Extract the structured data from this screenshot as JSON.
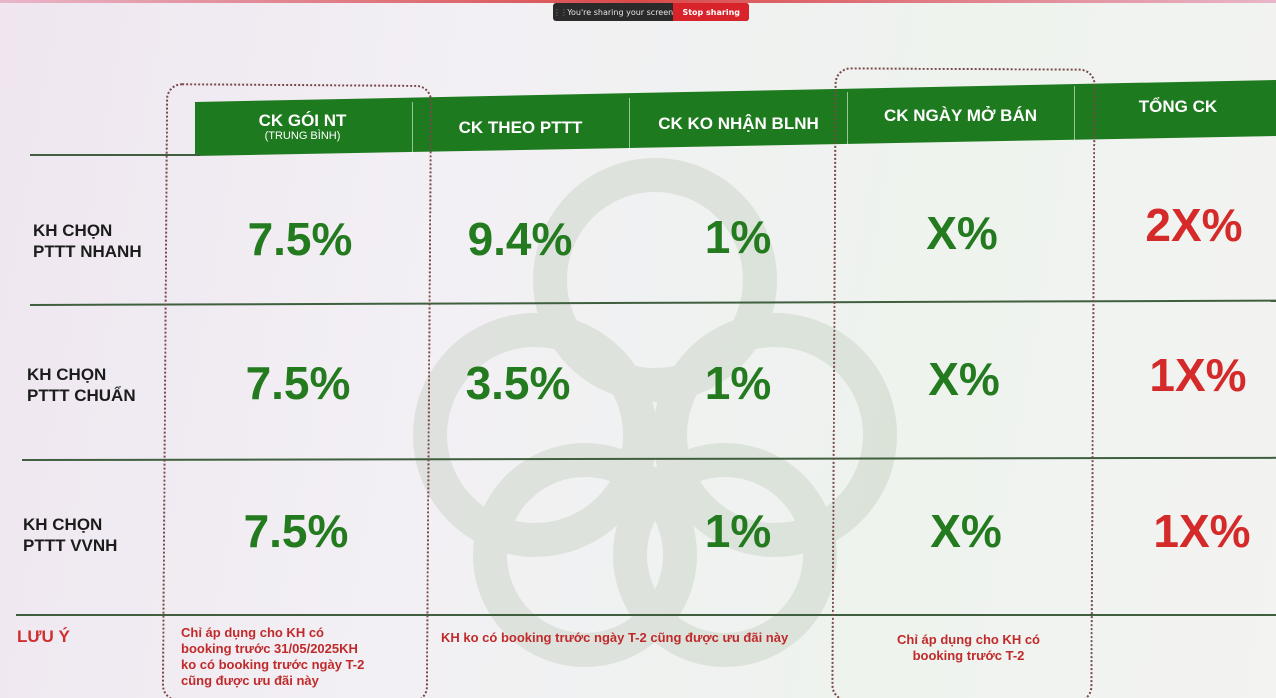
{
  "share_bar": {
    "message": "You're sharing your screen",
    "stop_label": "Stop sharing"
  },
  "headers": [
    {
      "label": "CK GÓI NT",
      "sub": "(TRUNG BÌNH)"
    },
    {
      "label": "CK THEO PTTT"
    },
    {
      "label": "CK KO NHẬN BLNH"
    },
    {
      "label": "CK NGÀY MỞ BÁN"
    },
    {
      "label": "TỔNG CK"
    }
  ],
  "rows": [
    {
      "label_line1": "KH CHỌN",
      "label_line2": "PTTT NHANH",
      "goi_nt": "7.5%",
      "theo_pttt": "9.4%",
      "ko_nhan_blnh": "1%",
      "ngay_mo_ban": "X%",
      "tong_ck": "2X%"
    },
    {
      "label_line1": "KH CHỌN",
      "label_line2": "PTTT CHUẨN",
      "goi_nt": "7.5%",
      "theo_pttt": "3.5%",
      "ko_nhan_blnh": "1%",
      "ngay_mo_ban": "X%",
      "tong_ck": "1X%"
    },
    {
      "label_line1": "KH CHỌN",
      "label_line2": "PTTT VVNH",
      "goi_nt": "7.5%",
      "theo_pttt": "",
      "ko_nhan_blnh": "1%",
      "ngay_mo_ban": "X%",
      "tong_ck": "1X%"
    }
  ],
  "notes": {
    "title": "LƯU Ý",
    "goi_nt_lines": [
      "Chỉ áp dụng cho KH có",
      "booking trước 31/05/2025KH",
      "ko có booking trước ngày T-2",
      "cũng được ưu đãi này"
    ],
    "theo_pttt": "KH ko có booking trước ngày T-2 cũng được ưu đãi này",
    "ngay_mo_ban_lines": [
      "Chỉ áp dụng cho KH có",
      "booking trước T-2"
    ]
  },
  "colors": {
    "header_green": "#1e7a1e",
    "value_green": "#237a1f",
    "total_red": "#d52a2a",
    "note_red": "#c02a2a",
    "share_stop_red": "#d8232a"
  }
}
